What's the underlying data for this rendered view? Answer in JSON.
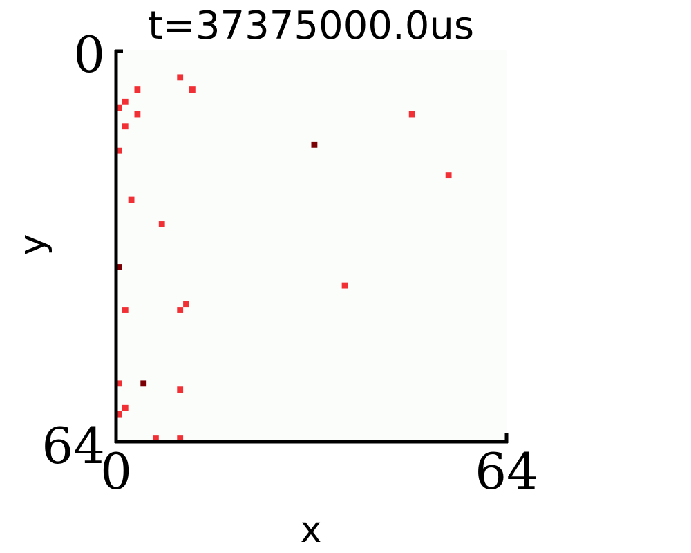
{
  "chart_data": {
    "type": "heatmap",
    "title": "t=37375000.0us",
    "xlabel": "x",
    "ylabel": "y",
    "xlim": [
      0,
      64
    ],
    "ylim": [
      0,
      64
    ],
    "y_inverted": true,
    "x_ticks": [
      "0",
      "64"
    ],
    "y_ticks": [
      "0",
      "64"
    ],
    "grid": false,
    "background_color": "#fbfdfb",
    "colors": {
      "low": "#f03035",
      "high": "#7a0005"
    },
    "pixels": [
      {
        "x": 10,
        "y": 4,
        "v": 1
      },
      {
        "x": 12,
        "y": 6,
        "v": 1
      },
      {
        "x": 3,
        "y": 6,
        "v": 1
      },
      {
        "x": 1,
        "y": 8,
        "v": 1
      },
      {
        "x": 0,
        "y": 9,
        "v": 1
      },
      {
        "x": 3,
        "y": 10,
        "v": 1
      },
      {
        "x": 48,
        "y": 10,
        "v": 1
      },
      {
        "x": 1,
        "y": 12,
        "v": 1
      },
      {
        "x": 32,
        "y": 15,
        "v": 2
      },
      {
        "x": 0,
        "y": 16,
        "v": 1
      },
      {
        "x": 54,
        "y": 20,
        "v": 1
      },
      {
        "x": 2,
        "y": 24,
        "v": 1
      },
      {
        "x": 7,
        "y": 28,
        "v": 1
      },
      {
        "x": 0,
        "y": 35,
        "v": 2
      },
      {
        "x": 37,
        "y": 38,
        "v": 1
      },
      {
        "x": 11,
        "y": 41,
        "v": 1
      },
      {
        "x": 1,
        "y": 42,
        "v": 1
      },
      {
        "x": 10,
        "y": 42,
        "v": 1
      },
      {
        "x": 0,
        "y": 54,
        "v": 1
      },
      {
        "x": 4,
        "y": 54,
        "v": 2
      },
      {
        "x": 10,
        "y": 55,
        "v": 1
      },
      {
        "x": 1,
        "y": 58,
        "v": 1
      },
      {
        "x": 0,
        "y": 59,
        "v": 1
      },
      {
        "x": 6,
        "y": 63,
        "v": 1
      },
      {
        "x": 10,
        "y": 63,
        "v": 1
      }
    ]
  }
}
